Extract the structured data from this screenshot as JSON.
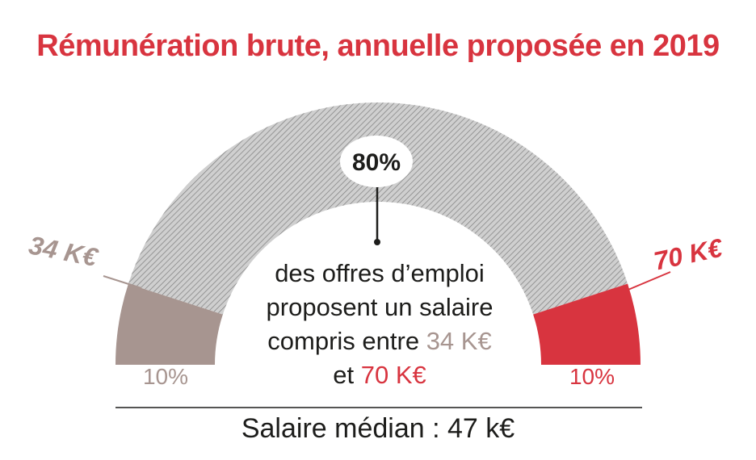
{
  "title": "Rémunération brute, annuelle proposée en 2019",
  "colors": {
    "title": "#d8343f",
    "low_segment": "#a79590",
    "mid_segment": "#a6a6a6",
    "high_segment": "#d8343f",
    "text": "#1d1d1b"
  },
  "chart_data": {
    "type": "gauge",
    "segments": [
      {
        "label": "10%",
        "percent": 10,
        "color": "#a79590"
      },
      {
        "label": "80%",
        "percent": 80,
        "color": "#a6a6a6",
        "pattern": "hatched"
      },
      {
        "label": "10%",
        "percent": 10,
        "color": "#d8343f"
      }
    ],
    "thresholds": [
      {
        "label": "34 K€"
      },
      {
        "label": "70 K€"
      }
    ],
    "center_text": {
      "line1": "des offres d’emploi",
      "line2": "proposent un salaire",
      "line3_prefix": "compris entre ",
      "line3_value": "34 K€",
      "line4_prefix": "et ",
      "line4_value": "70 K€"
    },
    "footer": "Salaire médian : 47 k€"
  }
}
